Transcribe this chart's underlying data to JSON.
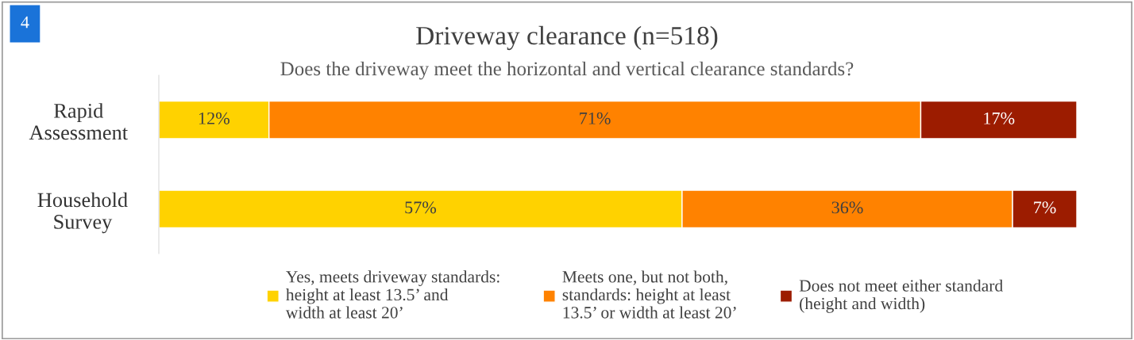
{
  "chart_data": {
    "type": "bar",
    "orientation": "horizontal",
    "stacked": true,
    "title": "Driveway clearance (n=518)",
    "subtitle": "Does the driveway meet the horizontal and vertical clearance standards?",
    "categories": [
      "Rapid\nAssessment",
      "Household\nSurvey"
    ],
    "series": [
      {
        "name": "Yes, meets driveway standards:\nheight at least 13.5’ and\nwidth at least 20’",
        "color": "#ffd200",
        "values": [
          12,
          57
        ],
        "value_labels": [
          "12%",
          "57%"
        ]
      },
      {
        "name": "Meets one, but not both,\nstandards: height at least\n13.5’ or width at least 20’",
        "color": "#ff8200",
        "values": [
          71,
          36
        ],
        "value_labels": [
          "71%",
          "36%"
        ]
      },
      {
        "name": "Does not meet either standard\n(height and width)",
        "color": "#9c1c00",
        "values": [
          17,
          7
        ],
        "value_labels": [
          "17%",
          "7%"
        ]
      }
    ],
    "annotations": [
      "4"
    ],
    "legend": "bottom",
    "tick_labels": "y"
  }
}
